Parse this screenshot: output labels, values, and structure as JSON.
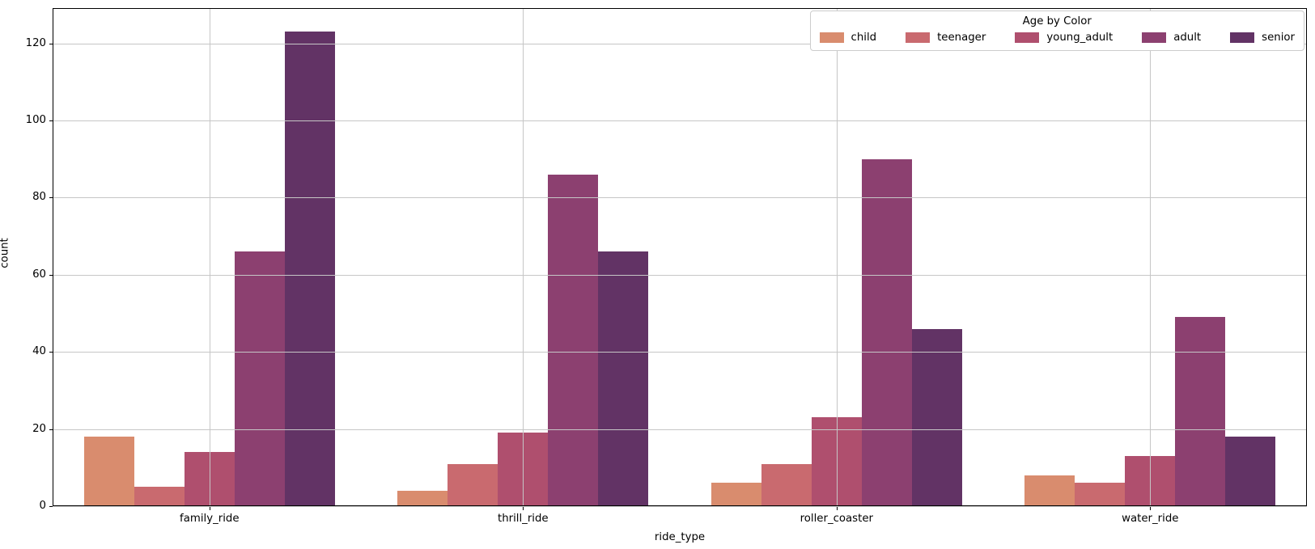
{
  "chart_data": {
    "type": "bar",
    "title": "",
    "xlabel": "ride_type",
    "ylabel": "count",
    "categories": [
      "family_ride",
      "thrill_ride",
      "roller_coaster",
      "water_ride"
    ],
    "series": [
      {
        "name": "child",
        "color": "#d98c6e",
        "values": [
          18,
          4,
          6,
          8
        ]
      },
      {
        "name": "teenager",
        "color": "#c96a6f",
        "values": [
          5,
          11,
          11,
          6
        ]
      },
      {
        "name": "young_adult",
        "color": "#af4f6e",
        "values": [
          14,
          19,
          23,
          13
        ]
      },
      {
        "name": "adult",
        "color": "#8c4070",
        "values": [
          66,
          86,
          90,
          49
        ]
      },
      {
        "name": "senior",
        "color": "#623365",
        "values": [
          123,
          66,
          46,
          18
        ]
      }
    ],
    "legend": {
      "title": "Age by Color",
      "position": "upper right",
      "orientation": "horizontal"
    },
    "y_ticks": [
      0,
      20,
      40,
      60,
      80,
      100,
      120
    ],
    "ylim": [
      0,
      129.15
    ],
    "grid": true
  }
}
